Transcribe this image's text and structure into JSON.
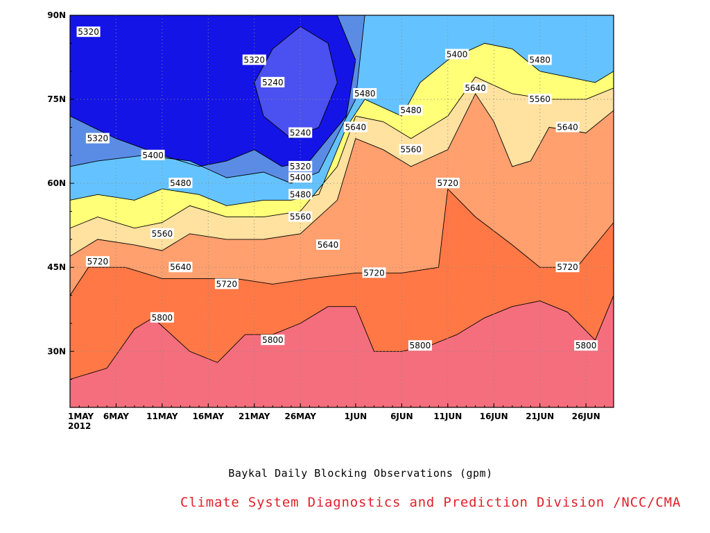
{
  "chart_data": {
    "type": "contour",
    "title": "",
    "caption": "Baykal Daily Blocking Observations (gpm)",
    "credit": "Climate System Diagnostics and Prediction Division /NCC/CMA",
    "xlabel": "",
    "ylabel": "",
    "x_tick_labels": [
      "1MAY",
      "6MAY",
      "11MAY",
      "16MAY",
      "21MAY",
      "26MAY",
      "1JUN",
      "6JUN",
      "11JUN",
      "16JUN",
      "21JUN",
      "26JUN"
    ],
    "x_year_label": "2012",
    "x_range": [
      "2012-05-01",
      "2012-06-29"
    ],
    "y_tick_labels": [
      "30N",
      "45N",
      "60N",
      "75N",
      "90N"
    ],
    "ylim": [
      20,
      90
    ],
    "grid": true,
    "levels": [
      5240,
      5320,
      5400,
      5480,
      5560,
      5640,
      5720,
      5800
    ],
    "colors": {
      "lt5240": "#1414e6",
      "5240": "#4b50f0",
      "5320": "#5a8ce6",
      "5400": "#64c3ff",
      "5480": "#ffff78",
      "5560": "#ffe1a0",
      "5640": "#ffa06e",
      "5720": "#ff7846",
      "5800": "#f56e7d",
      "line": "#000000",
      "grid": "#888888"
    },
    "contours": [
      {
        "level": 5240,
        "points": [
          [
            "2012-05-26",
            88
          ],
          [
            "2012-05-29",
            85
          ],
          [
            "2012-05-30",
            78
          ],
          [
            "2012-05-28",
            70
          ],
          [
            "2012-05-25",
            68
          ],
          [
            "2012-05-22",
            72
          ],
          [
            "2012-05-21",
            78
          ],
          [
            "2012-05-23",
            84
          ],
          [
            "2012-05-26",
            88
          ]
        ]
      },
      {
        "level": 5320,
        "points": [
          [
            "2012-05-01",
            72
          ],
          [
            "2012-05-06",
            68
          ],
          [
            "2012-05-11",
            65
          ],
          [
            "2012-05-15",
            63
          ],
          [
            "2012-05-18",
            64
          ],
          [
            "2012-05-21",
            66
          ],
          [
            "2012-05-24",
            63
          ],
          [
            "2012-05-27",
            64
          ],
          [
            "2012-05-31",
            72
          ],
          [
            "2012-06-01",
            82
          ],
          [
            "2012-05-30",
            90
          ]
        ]
      },
      {
        "level": 5400,
        "points": [
          [
            "2012-05-01",
            63
          ],
          [
            "2012-05-04",
            64
          ],
          [
            "2012-05-09",
            65
          ],
          [
            "2012-05-14",
            64
          ],
          [
            "2012-05-18",
            61
          ],
          [
            "2012-05-22",
            62
          ],
          [
            "2012-05-25",
            60
          ],
          [
            "2012-05-28",
            62
          ],
          [
            "2012-06-01",
            75
          ],
          [
            "2012-06-02",
            90
          ]
        ]
      },
      {
        "level": 5480,
        "points": [
          [
            "2012-05-01",
            57
          ],
          [
            "2012-05-04",
            58
          ],
          [
            "2012-05-08",
            57
          ],
          [
            "2012-05-11",
            59
          ],
          [
            "2012-05-15",
            58
          ],
          [
            "2012-05-18",
            56
          ],
          [
            "2012-05-22",
            57
          ],
          [
            "2012-05-25",
            57
          ],
          [
            "2012-05-28",
            58
          ],
          [
            "2012-05-31",
            70
          ],
          [
            "2012-06-02",
            75
          ],
          [
            "2012-06-06",
            72
          ],
          [
            "2012-06-08",
            78
          ],
          [
            "2012-06-11",
            82
          ],
          [
            "2012-06-15",
            85
          ],
          [
            "2012-06-18",
            84
          ],
          [
            "2012-06-21",
            80
          ],
          [
            "2012-06-24",
            79
          ],
          [
            "2012-06-27",
            78
          ],
          [
            "2012-06-29",
            80
          ]
        ]
      },
      {
        "level": 5560,
        "points": [
          [
            "2012-05-01",
            52
          ],
          [
            "2012-05-04",
            54
          ],
          [
            "2012-05-08",
            52
          ],
          [
            "2012-05-11",
            53
          ],
          [
            "2012-05-14",
            56
          ],
          [
            "2012-05-18",
            54
          ],
          [
            "2012-05-22",
            54
          ],
          [
            "2012-05-26",
            55
          ],
          [
            "2012-05-30",
            63
          ],
          [
            "2012-06-01",
            72
          ],
          [
            "2012-06-04",
            71
          ],
          [
            "2012-06-07",
            68
          ],
          [
            "2012-06-11",
            72
          ],
          [
            "2012-06-14",
            79
          ],
          [
            "2012-06-18",
            76
          ],
          [
            "2012-06-22",
            75
          ],
          [
            "2012-06-26",
            75
          ],
          [
            "2012-06-29",
            77
          ]
        ]
      },
      {
        "level": 5640,
        "points": [
          [
            "2012-05-01",
            47
          ],
          [
            "2012-05-04",
            50
          ],
          [
            "2012-05-08",
            49
          ],
          [
            "2012-05-11",
            48
          ],
          [
            "2012-05-14",
            51
          ],
          [
            "2012-05-18",
            50
          ],
          [
            "2012-05-22",
            50
          ],
          [
            "2012-05-26",
            51
          ],
          [
            "2012-05-30",
            57
          ],
          [
            "2012-06-01",
            68
          ],
          [
            "2012-06-04",
            66
          ],
          [
            "2012-06-07",
            63
          ],
          [
            "2012-06-11",
            66
          ],
          [
            "2012-06-14",
            76
          ],
          [
            "2012-06-16",
            71
          ],
          [
            "2012-06-18",
            63
          ],
          [
            "2012-06-20",
            64
          ],
          [
            "2012-06-22",
            70
          ],
          [
            "2012-06-26",
            69
          ],
          [
            "2012-06-29",
            73
          ]
        ]
      },
      {
        "level": 5720,
        "points": [
          [
            "2012-05-01",
            40
          ],
          [
            "2012-05-03",
            45
          ],
          [
            "2012-05-07",
            45
          ],
          [
            "2012-05-11",
            43
          ],
          [
            "2012-05-15",
            43
          ],
          [
            "2012-05-19",
            43
          ],
          [
            "2012-05-23",
            42
          ],
          [
            "2012-05-27",
            43
          ],
          [
            "2012-06-01",
            44
          ],
          [
            "2012-06-06",
            44
          ],
          [
            "2012-06-10",
            45
          ],
          [
            "2012-06-11",
            59
          ],
          [
            "2012-06-14",
            54
          ],
          [
            "2012-06-18",
            49
          ],
          [
            "2012-06-21",
            45
          ],
          [
            "2012-06-25",
            45
          ],
          [
            "2012-06-29",
            53
          ]
        ]
      },
      {
        "level": 5800,
        "points": [
          [
            "2012-05-01",
            25
          ],
          [
            "2012-05-05",
            27
          ],
          [
            "2012-05-08",
            34
          ],
          [
            "2012-05-10",
            36
          ],
          [
            "2012-05-14",
            30
          ],
          [
            "2012-05-17",
            28
          ],
          [
            "2012-05-20",
            33
          ],
          [
            "2012-05-23",
            33
          ],
          [
            "2012-05-26",
            35
          ],
          [
            "2012-05-29",
            38
          ],
          [
            "2012-06-01",
            38
          ],
          [
            "2012-06-03",
            30
          ],
          [
            "2012-06-06",
            30
          ],
          [
            "2012-06-09",
            31
          ],
          [
            "2012-06-12",
            33
          ],
          [
            "2012-06-15",
            36
          ],
          [
            "2012-06-18",
            38
          ],
          [
            "2012-06-21",
            39
          ],
          [
            "2012-06-24",
            37
          ],
          [
            "2012-06-27",
            32
          ],
          [
            "2012-06-29",
            40
          ]
        ]
      }
    ],
    "contour_labels": [
      {
        "text": "5320",
        "x": "2012-05-03",
        "y": 87
      },
      {
        "text": "5320",
        "x": "2012-05-21",
        "y": 82
      },
      {
        "text": "5240",
        "x": "2012-05-23",
        "y": 78
      },
      {
        "text": "5240",
        "x": "2012-05-26",
        "y": 69
      },
      {
        "text": "5320",
        "x": "2012-05-04",
        "y": 68
      },
      {
        "text": "5400",
        "x": "2012-05-10",
        "y": 65
      },
      {
        "text": "5480",
        "x": "2012-05-13",
        "y": 60
      },
      {
        "text": "5320",
        "x": "2012-05-26",
        "y": 63
      },
      {
        "text": "5400",
        "x": "2012-05-26",
        "y": 61
      },
      {
        "text": "5480",
        "x": "2012-05-26",
        "y": 58
      },
      {
        "text": "5560",
        "x": "2012-05-26",
        "y": 54
      },
      {
        "text": "5560",
        "x": "2012-05-11",
        "y": 51
      },
      {
        "text": "5640",
        "x": "2012-05-29",
        "y": 49
      },
      {
        "text": "5720",
        "x": "2012-05-04",
        "y": 46
      },
      {
        "text": "5640",
        "x": "2012-05-13",
        "y": 45
      },
      {
        "text": "5720",
        "x": "2012-05-18",
        "y": 42
      },
      {
        "text": "5480",
        "x": "2012-06-02",
        "y": 76
      },
      {
        "text": "5640",
        "x": "2012-06-01",
        "y": 70
      },
      {
        "text": "5480",
        "x": "2012-06-07",
        "y": 73
      },
      {
        "text": "5560",
        "x": "2012-06-07",
        "y": 66
      },
      {
        "text": "5720",
        "x": "2012-06-11",
        "y": 60
      },
      {
        "text": "5720",
        "x": "2012-06-03",
        "y": 44
      },
      {
        "text": "5400",
        "x": "2012-06-12",
        "y": 83
      },
      {
        "text": "5640",
        "x": "2012-06-14",
        "y": 77
      },
      {
        "text": "5480",
        "x": "2012-06-21",
        "y": 82
      },
      {
        "text": "5560",
        "x": "2012-06-21",
        "y": 75
      },
      {
        "text": "5640",
        "x": "2012-06-24",
        "y": 70
      },
      {
        "text": "5720",
        "x": "2012-06-24",
        "y": 45
      },
      {
        "text": "5800",
        "x": "2012-05-11",
        "y": 36
      },
      {
        "text": "5800",
        "x": "2012-05-23",
        "y": 32
      },
      {
        "text": "5800",
        "x": "2012-06-08",
        "y": 31
      },
      {
        "text": "5800",
        "x": "2012-06-26",
        "y": 31
      }
    ]
  }
}
